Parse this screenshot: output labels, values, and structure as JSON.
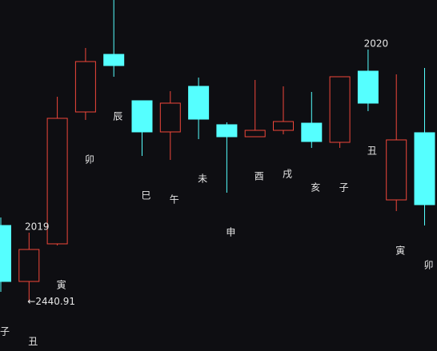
{
  "chart_data": {
    "type": "candlestick",
    "categories": [
      "子",
      "丑",
      "寅",
      "卯",
      "辰",
      "巳",
      "午",
      "未",
      "申",
      "酉",
      "戌",
      "亥",
      "子",
      "丑",
      "寅",
      "卯"
    ],
    "open": [
      2650.4,
      2497.1,
      2600.1,
      2961.4,
      3119.1,
      2992.1,
      2906.7,
      3031.5,
      2926.4,
      2893.5,
      2911.0,
      2930.7,
      2878.2,
      3073.1,
      2720.5,
      2904.5
    ],
    "close": [
      2497.1,
      2584.7,
      2943.9,
      3099.4,
      3088.4,
      2906.7,
      2985.5,
      2941.7,
      2893.5,
      2911.0,
      2935.1,
      2880.4,
      3057.8,
      2985.5,
      2884.8,
      2707.4
    ],
    "high": [
      2672.3,
      2630.7,
      3003.0,
      3136.6,
      3268.0,
      2992.1,
      3018.3,
      3055.6,
      2932.9,
      3049.0,
      3031.5,
      3016.2,
      3057.8,
      3132.2,
      3064.3,
      3081.9
    ],
    "low": [
      2468.7,
      2440.91,
      2595.7,
      2939.5,
      3057.8,
      2840.9,
      2830.0,
      2886.9,
      2740.2,
      2893.5,
      2900.1,
      2862.9,
      2862.9,
      2963.6,
      2689.8,
      2650.4
    ],
    "up_color": "#f0473a",
    "down_color": "#55ffff",
    "years": [
      {
        "at": 1,
        "label": "2019"
      },
      {
        "at": 13,
        "label": "2020"
      }
    ],
    "min_label": "←2440.91",
    "ylim": [
      2306.6,
      3268.0
    ]
  }
}
